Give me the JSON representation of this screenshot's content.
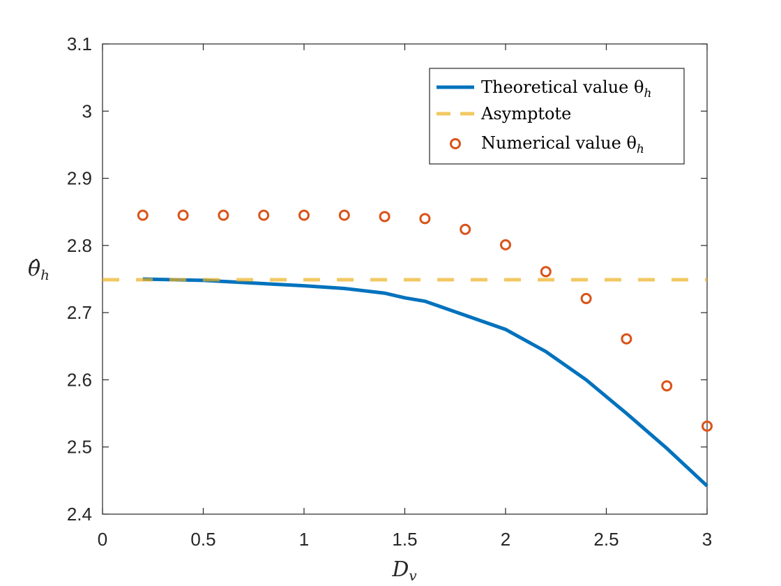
{
  "chart_data": {
    "type": "line",
    "title": "",
    "xlabel": "D_v",
    "ylabel": "θ̂_h",
    "xlim": [
      0,
      3
    ],
    "ylim": [
      2.4,
      3.1
    ],
    "xticks": [
      "0",
      "0.5",
      "1",
      "1.5",
      "2",
      "2.5",
      "3"
    ],
    "yticks": [
      "2.4",
      "2.5",
      "2.6",
      "2.7",
      "2.8",
      "2.9",
      "3",
      "3.1"
    ],
    "grid": false,
    "legend_position": "top-right",
    "series": [
      {
        "name": "Theoretical value θ̂_h",
        "kind": "line",
        "color": "#0072BD",
        "x": [
          0.2,
          0.5,
          1.0,
          1.2,
          1.4,
          1.5,
          1.6,
          1.8,
          2.0,
          2.2,
          2.4,
          2.6,
          2.8,
          3.0
        ],
        "y": [
          2.75,
          2.748,
          2.74,
          2.736,
          2.729,
          2.722,
          2.717,
          2.696,
          2.675,
          2.642,
          2.6,
          2.55,
          2.498,
          2.442
        ]
      },
      {
        "name": "Asymptote",
        "kind": "dashed",
        "color": "#EDB120",
        "x": [
          0,
          3
        ],
        "y": [
          2.749,
          2.749
        ]
      },
      {
        "name": "Numerical value θ̂_h",
        "kind": "scatter",
        "color": "#D95319",
        "x": [
          0.2,
          0.4,
          0.6,
          0.8,
          1.0,
          1.2,
          1.4,
          1.6,
          1.8,
          2.0,
          2.2,
          2.4,
          2.6,
          2.8,
          3.0
        ],
        "y": [
          2.845,
          2.845,
          2.845,
          2.845,
          2.845,
          2.845,
          2.843,
          2.84,
          2.824,
          2.801,
          2.761,
          2.721,
          2.661,
          2.591,
          2.531
        ]
      }
    ]
  }
}
